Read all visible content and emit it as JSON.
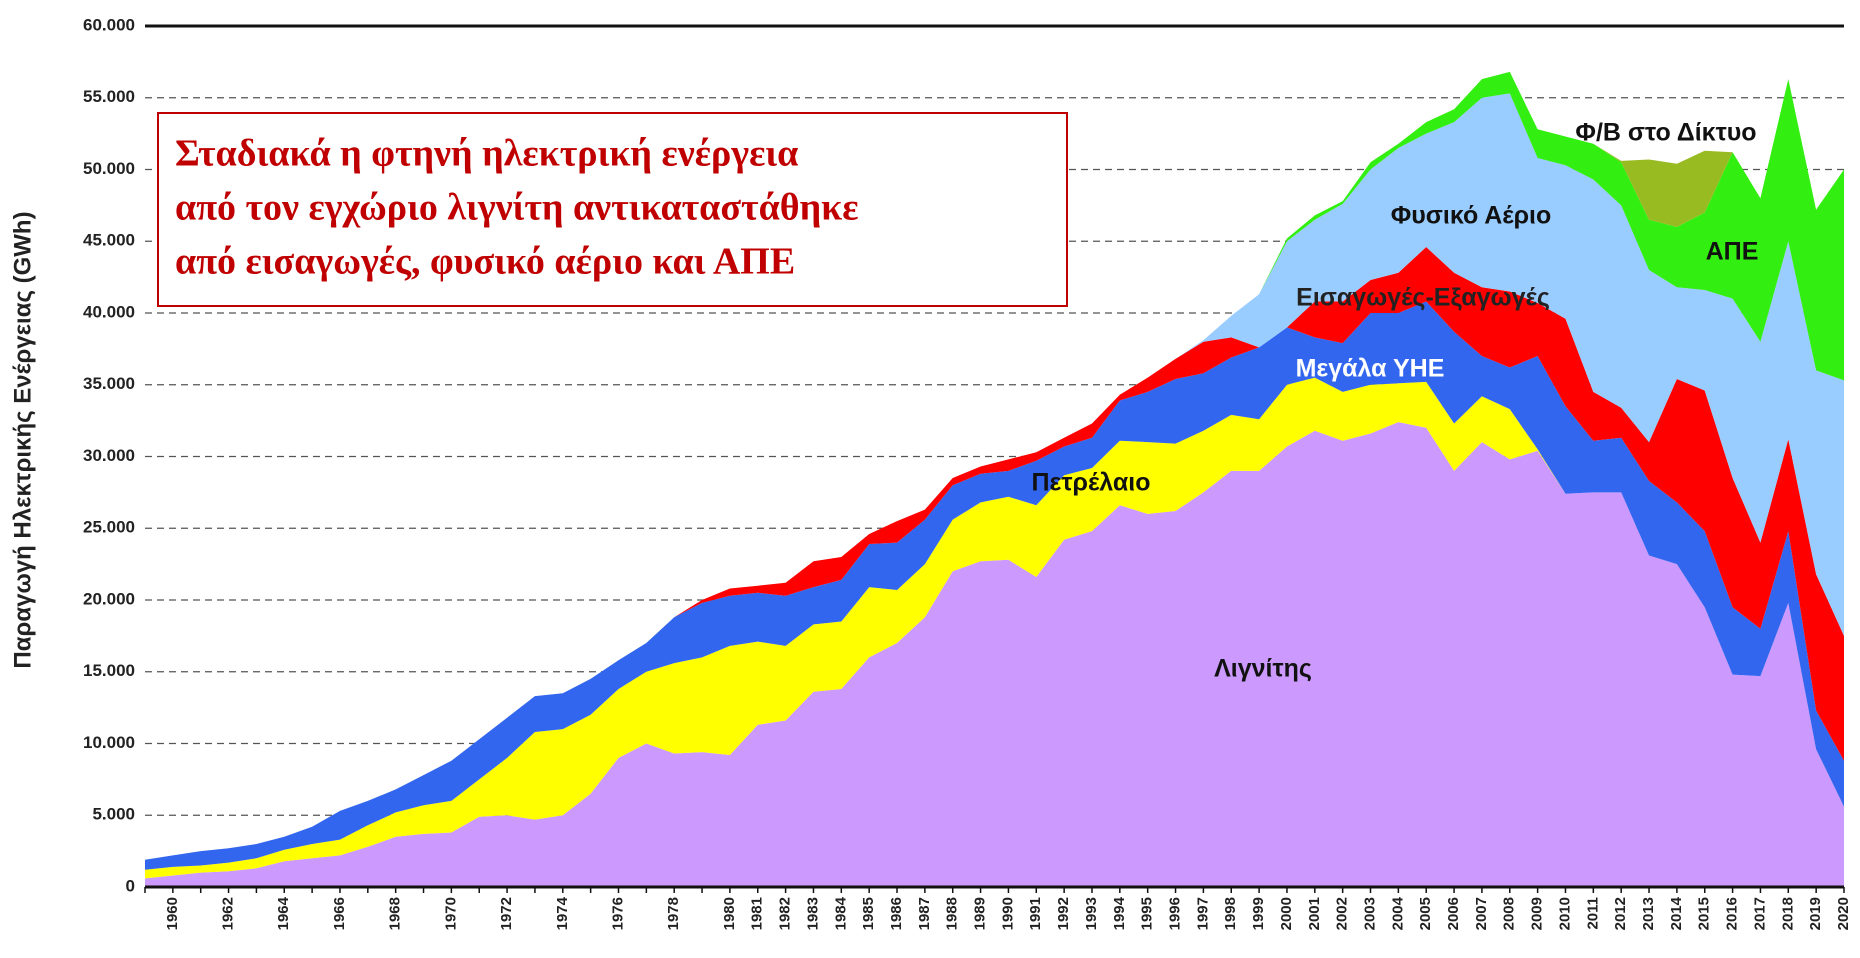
{
  "chart_data": {
    "type": "stacked_area",
    "ylabel": "Παραγωγή Ηλεκτρικής Ενέργειας  (GWh)",
    "annotation_lines": [
      "Σταδιακά η φτηνή ηλεκτρική ενέργεια",
      "από τον εγχώριο λιγνίτη αντικαταστάθηκε",
      "από εισαγωγές, φυσικό αέριο και ΑΠΕ"
    ],
    "categories": [
      null,
      "1960",
      null,
      "1962",
      null,
      "1964",
      null,
      "1966",
      null,
      "1968",
      null,
      "1970",
      null,
      "1972",
      null,
      "1974",
      null,
      "1976",
      null,
      "1978",
      null,
      "1980",
      "1981",
      "1982",
      "1983",
      "1984",
      "1985",
      "1986",
      "1987",
      "1988",
      "1989",
      "1990",
      "1991",
      "1992",
      "1993",
      "1994",
      "1995",
      "1996",
      "1997",
      "1998",
      "1999",
      "2000",
      "2001",
      "2002",
      "2003",
      "2004",
      "2005",
      "2006",
      "2007",
      "2008",
      "2009",
      "2010",
      "2011",
      "2012",
      "2013",
      "2014",
      "2015",
      "2016",
      "2017",
      "2018",
      "2019",
      "2020"
    ],
    "ylim": [
      0,
      60000
    ],
    "yticks": [
      {
        "value": 0,
        "label": "0"
      },
      {
        "value": 5000,
        "label": "5.000"
      },
      {
        "value": 10000,
        "label": "10.000"
      },
      {
        "value": 15000,
        "label": "15.000"
      },
      {
        "value": 20000,
        "label": "20.000"
      },
      {
        "value": 25000,
        "label": "25.000"
      },
      {
        "value": 30000,
        "label": "30.000"
      },
      {
        "value": 35000,
        "label": "35.000"
      },
      {
        "value": 40000,
        "label": "40.000"
      },
      {
        "value": 45000,
        "label": "45.000"
      },
      {
        "value": 50000,
        "label": "50.000"
      },
      {
        "value": 55000,
        "label": "55.000"
      },
      {
        "value": 60000,
        "label": "60.000"
      }
    ],
    "grid": true,
    "series": [
      {
        "name": "Λιγνίτης",
        "color": "#cc99ff",
        "values": [
          600,
          800,
          1000,
          1100,
          1300,
          1800,
          2000,
          2200,
          2800,
          3500,
          3700,
          3800,
          4900,
          5000,
          4700,
          5000,
          6500,
          9000,
          10000,
          9300,
          9400,
          9200,
          11300,
          11600,
          13600,
          13800,
          16000,
          17000,
          18800,
          22000,
          22700,
          22800,
          21600,
          24200,
          24800,
          26600,
          26000,
          26200,
          27500,
          29000,
          29000,
          30700,
          31800,
          31100,
          31600,
          32400,
          32000,
          29000,
          31000,
          29800,
          30400,
          27400,
          27500,
          27500,
          23100,
          22500,
          19500,
          14800,
          14700,
          19800,
          9600,
          5600
        ]
      },
      {
        "name": "Πετρέλαιο",
        "color": "#ffff00",
        "values": [
          600,
          600,
          500,
          600,
          700,
          800,
          1000,
          1100,
          1500,
          1700,
          2000,
          2200,
          2600,
          4000,
          6100,
          6000,
          5500,
          4800,
          5000,
          6300,
          6600,
          7600,
          5800,
          5200,
          4700,
          4700,
          4900,
          3700,
          3700,
          3600,
          4100,
          4400,
          5000,
          4500,
          4400,
          4500,
          5000,
          4700,
          4300,
          3900,
          3600,
          4300,
          3700,
          3400,
          3400,
          2700,
          3200,
          3300,
          3200,
          3500,
          100,
          0,
          0,
          0,
          0,
          0,
          0,
          0,
          0,
          0,
          0,
          0
        ]
      },
      {
        "name": "Μεγάλα ΥΗΕ",
        "color": "#3366ee",
        "values": [
          700,
          800,
          1000,
          1000,
          1000,
          900,
          1200,
          2000,
          1700,
          1600,
          2100,
          2800,
          2800,
          2800,
          2500,
          2500,
          2500,
          2000,
          2000,
          3200,
          3800,
          3500,
          3400,
          3500,
          2600,
          2900,
          3000,
          3300,
          3100,
          2400,
          2000,
          1800,
          3100,
          2000,
          2100,
          2800,
          3500,
          4500,
          4000,
          4000,
          5000,
          4000,
          2800,
          3400,
          5000,
          4900,
          5600,
          6400,
          2800,
          2900,
          6500,
          6100,
          3600,
          3800,
          5200,
          4300,
          5300,
          4700,
          3300,
          5000,
          2700,
          3200
        ]
      },
      {
        "name": "Εισαγωγές-Εξαγωγές",
        "color": "#ff0000",
        "values": [
          0,
          0,
          0,
          0,
          0,
          0,
          0,
          0,
          0,
          0,
          0,
          0,
          0,
          0,
          0,
          0,
          0,
          0,
          0,
          0,
          200,
          500,
          500,
          900,
          1800,
          1600,
          700,
          1500,
          700,
          500,
          500,
          800,
          600,
          600,
          1000,
          400,
          1000,
          1400,
          2200,
          1400,
          0,
          0,
          2500,
          2900,
          2300,
          2800,
          3800,
          4100,
          4800,
          5300,
          3700,
          6100,
          3400,
          2100,
          2700,
          8600,
          9800,
          9000,
          6000,
          6400,
          9500,
          8700
        ]
      },
      {
        "name": "Φυσικό Αέριο",
        "color": "#99ccff",
        "values": [
          0,
          0,
          0,
          0,
          0,
          0,
          0,
          0,
          0,
          0,
          0,
          0,
          0,
          0,
          0,
          0,
          0,
          0,
          0,
          0,
          0,
          0,
          0,
          0,
          0,
          0,
          0,
          0,
          0,
          0,
          0,
          0,
          0,
          0,
          0,
          0,
          0,
          0,
          100,
          1500,
          3700,
          6000,
          5700,
          6800,
          7700,
          8700,
          7900,
          10500,
          13200,
          13800,
          10100,
          10700,
          14800,
          14100,
          12000,
          6400,
          7000,
          12500,
          14000,
          13800,
          14200,
          17800
        ]
      },
      {
        "name": "ΑΠΕ",
        "color": "#33ee11",
        "values": [
          0,
          0,
          0,
          0,
          0,
          0,
          0,
          0,
          0,
          0,
          0,
          0,
          0,
          0,
          0,
          0,
          0,
          0,
          0,
          0,
          0,
          0,
          0,
          0,
          0,
          0,
          0,
          0,
          0,
          0,
          0,
          0,
          0,
          0,
          0,
          0,
          0,
          0,
          0,
          0,
          0,
          200,
          300,
          200,
          500,
          300,
          800,
          900,
          1300,
          1500,
          2000,
          2000,
          2500,
          3000,
          3500,
          4200,
          5400,
          10200,
          10000,
          11300,
          11200,
          14700
        ]
      },
      {
        "name": "Φ/Β στο Δίκτυο",
        "color": "#99bb22",
        "values": [
          0,
          0,
          0,
          0,
          0,
          0,
          0,
          0,
          0,
          0,
          0,
          0,
          0,
          0,
          0,
          0,
          0,
          0,
          0,
          0,
          0,
          0,
          0,
          0,
          0,
          0,
          0,
          0,
          0,
          0,
          0,
          0,
          0,
          0,
          0,
          0,
          0,
          0,
          0,
          0,
          0,
          0,
          0,
          0,
          0,
          0,
          0,
          0,
          0,
          0,
          0,
          0,
          0,
          100,
          4200,
          4400,
          4300,
          0,
          0,
          0,
          0,
          0
        ]
      }
    ]
  }
}
